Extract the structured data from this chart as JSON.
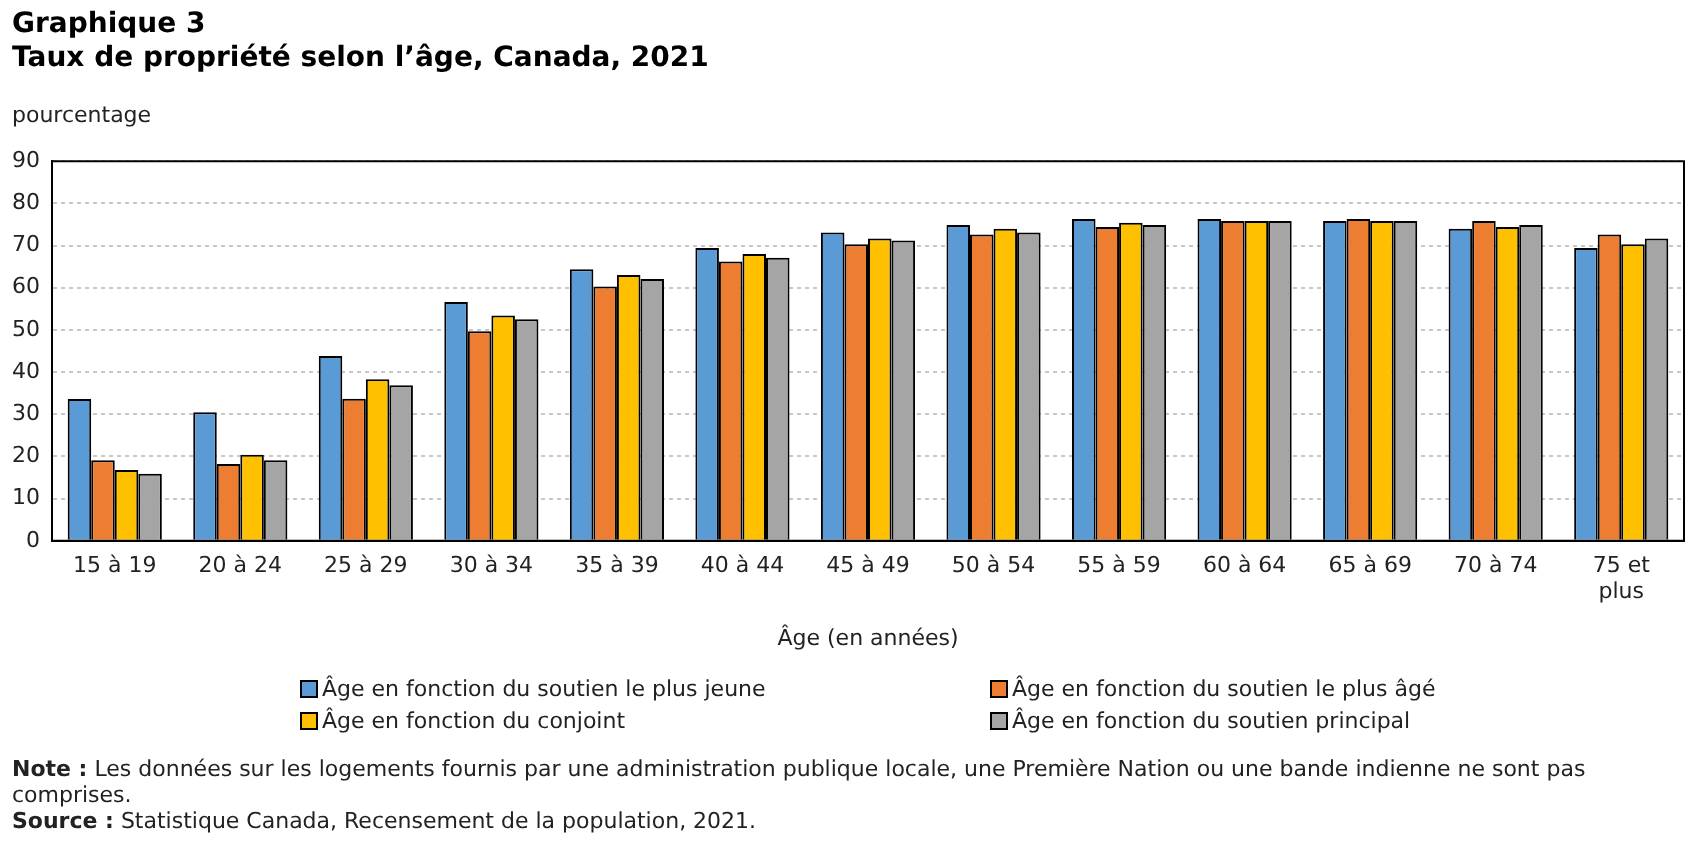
{
  "chart_data": {
    "type": "bar",
    "title": "Graphique 3",
    "subtitle": "Taux de propriété selon l’âge, Canada, 2021",
    "ylabel": "pourcentage",
    "xlabel": "Âge (en années)",
    "categories": [
      "15 à 19",
      "20 à 24",
      "25 à 29",
      "30 à 34",
      "35 à 39",
      "40 à 44",
      "45 à 49",
      "50 à 54",
      "55 à 59",
      "60 à 64",
      "65 à 69",
      "70 à 74",
      "75 et plus"
    ],
    "series": [
      {
        "name": "Âge en fonction du soutien le plus jeune",
        "color": "#5b9bd5",
        "values": [
          33.6,
          30.5,
          43.8,
          56.6,
          64.4,
          69.4,
          73.1,
          74.9,
          76.3,
          76.3,
          75.8,
          74.0,
          69.4
        ]
      },
      {
        "name": "Âge en fonction du soutien le plus âgé",
        "color": "#ed7d31",
        "values": [
          19.1,
          18.2,
          33.7,
          49.7,
          60.3,
          66.2,
          70.3,
          72.6,
          74.4,
          75.8,
          76.3,
          75.8,
          72.6
        ]
      },
      {
        "name": "Âge en fonction du conjoint",
        "color": "#ffc000",
        "values": [
          16.8,
          20.4,
          38.3,
          53.4,
          63.0,
          68.0,
          71.7,
          74.0,
          75.4,
          75.8,
          75.8,
          74.4,
          70.3
        ]
      },
      {
        "name": "Âge en fonction du soutien principal",
        "color": "#a5a5a5",
        "values": [
          15.9,
          19.1,
          36.9,
          52.5,
          62.1,
          67.1,
          71.2,
          73.1,
          74.9,
          75.8,
          75.8,
          74.9,
          71.7
        ]
      }
    ],
    "ylim": [
      0,
      90
    ],
    "yticks": [
      0,
      10,
      20,
      30,
      40,
      50,
      60,
      70,
      80,
      90
    ],
    "grid": "y",
    "legend": "bottom",
    "annotations": [
      "Note : Les données sur les logements fournis par une administration publique locale, une Première Nation ou une bande indienne ne sont pas comprises.",
      "Source : Statistique Canada, Recensement de la population, 2021."
    ]
  }
}
